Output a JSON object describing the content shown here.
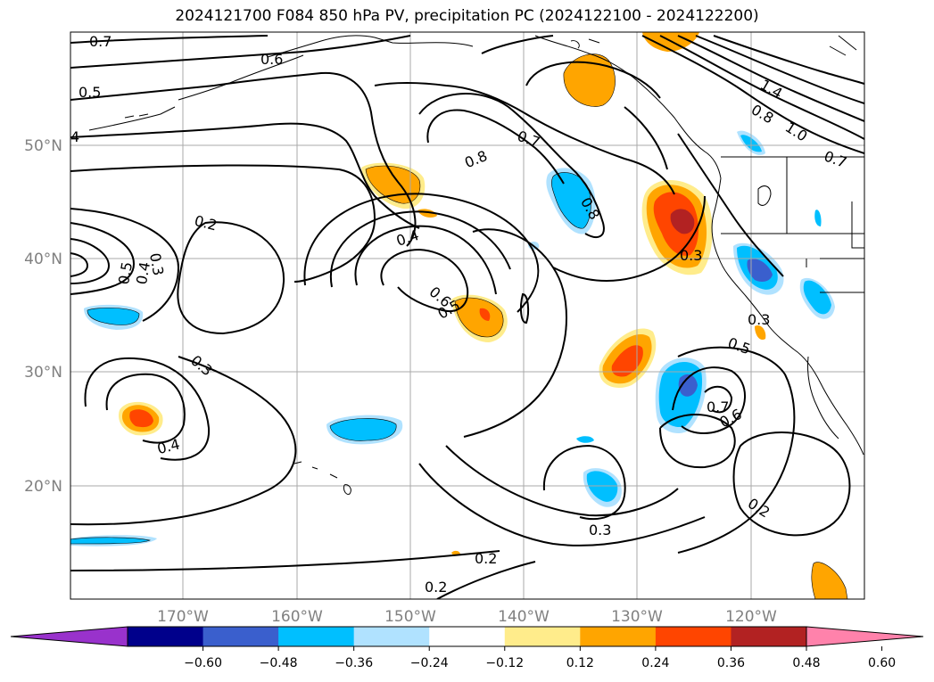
{
  "title": "2024121700 F084 850 hPa PV, precipitation PC (2024122100 - 2024122200)",
  "axes": {
    "lat_labels": [
      "50°N",
      "40°N",
      "30°N",
      "20°N"
    ],
    "lon_labels": [
      "170°W",
      "160°W",
      "150°W",
      "140°W",
      "130°W",
      "120°W"
    ]
  },
  "contour_labels": [
    "0.7",
    "0.6",
    "0.5",
    "4",
    "0.8",
    "0.7",
    "1.4",
    "0.8",
    "1.0",
    "0.7",
    "0.8",
    "0.2",
    "0.4",
    "0.5",
    "0.4",
    "0.3",
    "0.6",
    "0.5",
    "0.3",
    "0.3",
    "0.3",
    "0.5",
    "0.7",
    "0.6",
    "0.4",
    "0.3",
    "0.2",
    "0.2",
    "0.2"
  ],
  "colorbar": {
    "ticks": [
      "−0.60",
      "−0.48",
      "−0.36",
      "−0.24",
      "−0.12",
      "0.12",
      "0.24",
      "0.36",
      "0.48",
      "0.60"
    ],
    "colors": [
      "#9932cc",
      "#00008b",
      "#3a5fcd",
      "#00bfff",
      "#b0e2ff",
      "#ffffff",
      "#ffec8b",
      "#ffa500",
      "#ff4500",
      "#b22222",
      "#ff82ab"
    ]
  }
}
